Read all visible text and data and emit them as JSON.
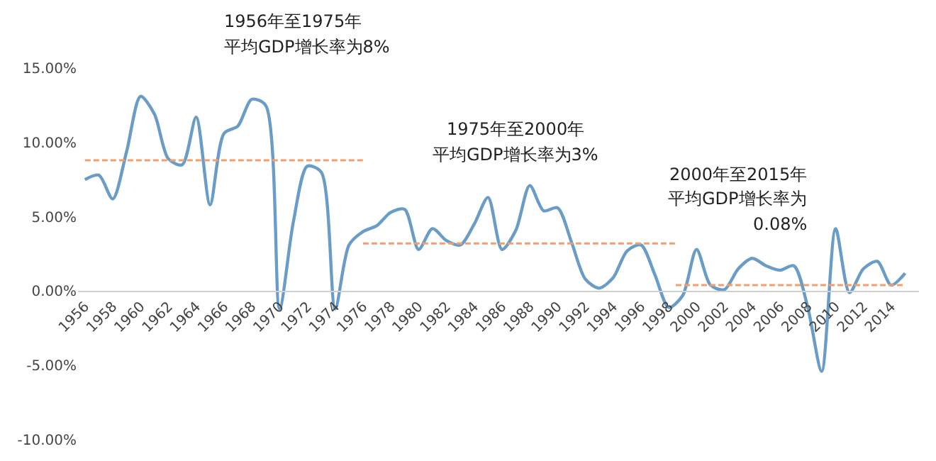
{
  "chart_data": {
    "type": "line",
    "x": [
      1956,
      1957,
      1958,
      1959,
      1960,
      1961,
      1962,
      1963,
      1964,
      1965,
      1966,
      1967,
      1968,
      1969,
      1970,
      1971,
      1972,
      1973,
      1974,
      1975,
      1976,
      1977,
      1978,
      1979,
      1980,
      1981,
      1982,
      1983,
      1984,
      1985,
      1986,
      1987,
      1988,
      1989,
      1990,
      1991,
      1992,
      1993,
      1994,
      1995,
      1996,
      1997,
      1998,
      1999,
      2000,
      2001,
      2002,
      2003,
      2004,
      2005,
      2006,
      2007,
      2008,
      2009,
      2010,
      2011,
      2012,
      2013,
      2014,
      2015
    ],
    "series": [
      {
        "color": "#6a9cc8",
        "values": [
          7.5,
          7.8,
          6.2,
          9.4,
          13.1,
          11.9,
          8.9,
          8.5,
          11.7,
          5.8,
          10.6,
          11.1,
          12.9,
          12.5,
          -1.2,
          4.7,
          8.4,
          8.0,
          -1.2,
          3.1,
          4.0,
          4.4,
          5.3,
          5.5,
          2.8,
          4.2,
          3.4,
          3.1,
          4.5,
          6.3,
          2.8,
          4.1,
          7.1,
          5.4,
          5.6,
          3.3,
          0.8,
          0.2,
          0.9,
          2.7,
          3.1,
          1.1,
          -1.1,
          -0.3,
          2.8,
          0.4,
          0.1,
          1.5,
          2.2,
          1.7,
          1.4,
          1.7,
          -1.1,
          -5.4,
          4.2,
          -0.1,
          1.5,
          2.0,
          0.4,
          1.2
        ]
      },
      {
        "type": "line",
        "line_style": "dashed",
        "color": "#f0a070",
        "x": [
          1956,
          1976
        ],
        "values": [
          8.8,
          8.8
        ]
      },
      {
        "type": "line",
        "line_style": "dashed",
        "color": "#f0a070",
        "x": [
          1976,
          1998.5
        ],
        "values": [
          3.2,
          3.2
        ]
      },
      {
        "type": "line",
        "line_style": "dashed",
        "color": "#f0a070",
        "x": [
          1998.5,
          2015
        ],
        "values": [
          0.4,
          0.4
        ]
      }
    ],
    "xlim": [
      1955.5,
      2016
    ],
    "xticks": [
      1956,
      1958,
      1960,
      1962,
      1964,
      1966,
      1968,
      1970,
      1972,
      1974,
      1976,
      1978,
      1980,
      1982,
      1984,
      1986,
      1988,
      1990,
      1992,
      1994,
      1996,
      1998,
      2000,
      2002,
      2004,
      2006,
      2008,
      2010,
      2012,
      2014
    ],
    "ylim": [
      -10,
      15
    ],
    "yticks": [
      {
        "value": -10,
        "label": "-10.00%"
      },
      {
        "value": -5,
        "label": "-5.00%"
      },
      {
        "value": 0,
        "label": "0.00%"
      },
      {
        "value": 5,
        "label": "5.00%"
      },
      {
        "value": 10,
        "label": "10.00%"
      },
      {
        "value": 15,
        "label": "15.00%"
      }
    ],
    "annotations": [
      "1956年至1975年",
      "平均GDP增长率为8%",
      "1975年至2000年",
      "平均GDP增长率为3%",
      "2000年至2015年",
      "平均GDP增长率为",
      "0.08%"
    ],
    "marker": "none",
    "line_style": "solid"
  }
}
